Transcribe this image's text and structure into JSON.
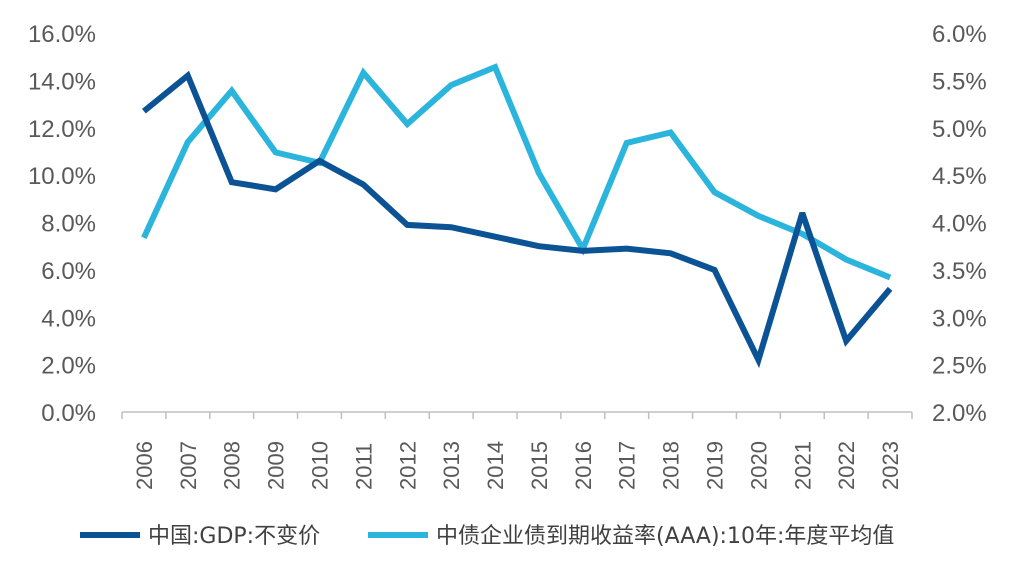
{
  "colors": {
    "gdp": "#0b5394",
    "yield": "#2bb5dc",
    "axis": "#bfbfbf",
    "text": "#595959"
  },
  "chart_data": {
    "type": "line",
    "categories": [
      "2006",
      "2007",
      "2008",
      "2009",
      "2010",
      "2011",
      "2012",
      "2013",
      "2014",
      "2015",
      "2016",
      "2017",
      "2018",
      "2019",
      "2020",
      "2021",
      "2022",
      "2023"
    ],
    "y_left": {
      "ticks": [
        "0.0%",
        "2.0%",
        "4.0%",
        "6.0%",
        "8.0%",
        "10.0%",
        "12.0%",
        "14.0%",
        "16.0%"
      ],
      "ylim": [
        0,
        16
      ]
    },
    "y_right": {
      "ticks": [
        "2.0%",
        "2.5%",
        "3.0%",
        "3.5%",
        "4.0%",
        "4.5%",
        "5.0%",
        "5.5%",
        "6.0%"
      ],
      "ylim": [
        2,
        6
      ]
    },
    "series": [
      {
        "name": "中国:GDP:不变价",
        "axis": "left",
        "values": [
          12.7,
          14.2,
          9.7,
          9.4,
          10.6,
          9.6,
          7.9,
          7.8,
          7.4,
          7.0,
          6.8,
          6.9,
          6.7,
          6.0,
          2.2,
          8.4,
          3.0,
          5.2
        ]
      },
      {
        "name": "中债企业债到期收益率(AAA):10年:年度平均值",
        "axis": "right",
        "values": [
          3.84,
          4.85,
          5.39,
          4.74,
          4.63,
          5.58,
          5.04,
          5.45,
          5.64,
          4.52,
          3.72,
          4.84,
          4.95,
          4.32,
          4.07,
          3.88,
          3.61,
          3.42
        ]
      }
    ],
    "legend_position": "bottom",
    "grid": false
  }
}
